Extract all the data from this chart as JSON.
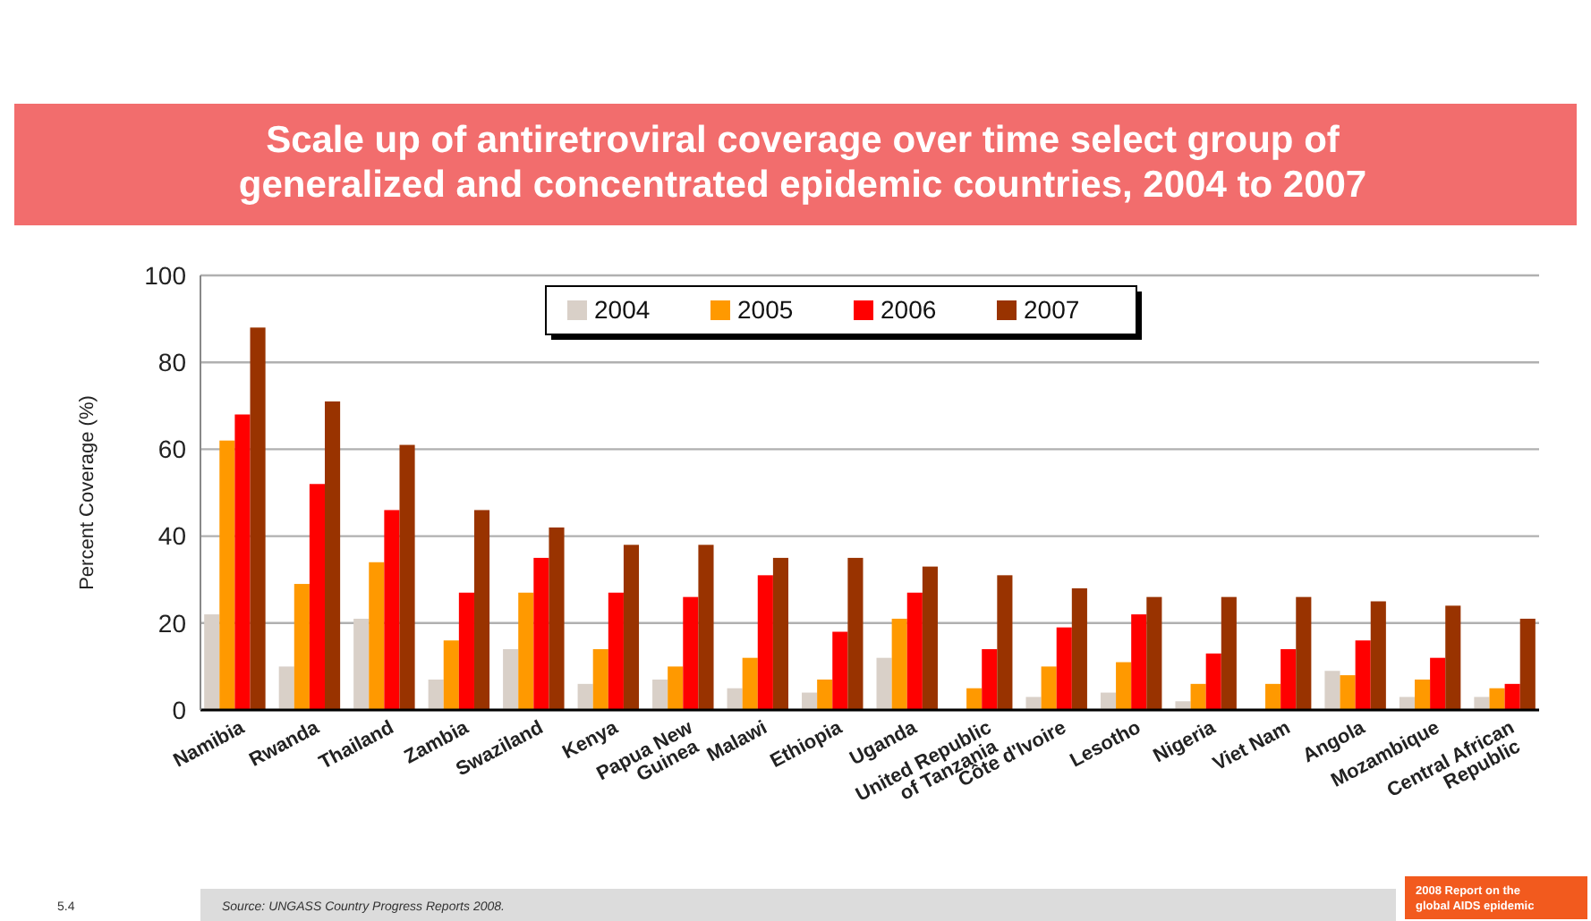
{
  "chart_data": {
    "type": "bar",
    "title": "Scale up of antiretroviral coverage over time select group of generalized and concentrated epidemic countries, 2004 to 2007",
    "ylabel": "Percent Coverage (%)",
    "categories": [
      "Namibia",
      "Rwanda",
      "Thailand",
      "Zambia",
      "Swaziland",
      "Kenya",
      "Papua New Guinea",
      "Malawi",
      "Ethiopia",
      "Uganda",
      "United Republic of Tanzania",
      "Côte d'Ivoire",
      "Lesotho",
      "Nigeria",
      "Viet Nam",
      "Angola",
      "Mozambique",
      "Central African Republic"
    ],
    "series": [
      {
        "name": "2004",
        "color": "#d9d0c8",
        "values": [
          22,
          10,
          21,
          7,
          14,
          6,
          7,
          5,
          4,
          12,
          0,
          3,
          4,
          2,
          0,
          9,
          3,
          3
        ]
      },
      {
        "name": "2005",
        "color": "#ff9900",
        "values": [
          62,
          29,
          34,
          16,
          27,
          14,
          10,
          12,
          7,
          21,
          5,
          10,
          11,
          6,
          6,
          8,
          7,
          5
        ]
      },
      {
        "name": "2006",
        "color": "#ff0000",
        "values": [
          68,
          52,
          46,
          27,
          35,
          27,
          26,
          31,
          18,
          27,
          14,
          19,
          22,
          13,
          14,
          16,
          12,
          6
        ]
      },
      {
        "name": "2007",
        "color": "#993300",
        "values": [
          88,
          71,
          61,
          46,
          42,
          38,
          38,
          35,
          35,
          33,
          31,
          28,
          26,
          26,
          26,
          25,
          24,
          21
        ]
      }
    ],
    "ylim": [
      0,
      100
    ],
    "yticks": [
      0,
      20,
      40,
      60,
      80,
      100
    ],
    "grid": "y",
    "legend": "top",
    "annotations": [
      "5.4",
      "Source: UNGASS Country Progress Reports 2008.",
      "2008 Report on the global AIDS epidemic"
    ]
  }
}
